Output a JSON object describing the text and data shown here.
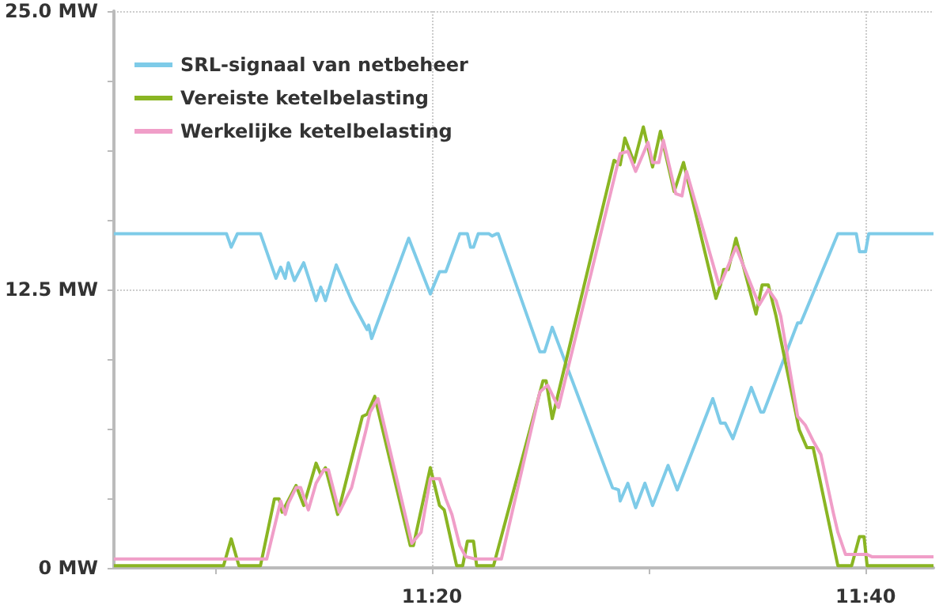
{
  "chart_data": {
    "type": "line",
    "xlim": [
      11.0889,
      11.7188
    ],
    "xticks": [
      {
        "value": 11.1667,
        "label": null
      },
      {
        "value": 11.3333,
        "label": "11:20"
      },
      {
        "value": 11.5,
        "label": null
      },
      {
        "value": 11.6667,
        "label": "11:40"
      }
    ],
    "ylim": [
      0,
      25
    ],
    "yticks": [
      {
        "value": 0,
        "label": "0 MW"
      },
      {
        "value": 3.125,
        "label": null
      },
      {
        "value": 6.25,
        "label": null
      },
      {
        "value": 9.375,
        "label": null
      },
      {
        "value": 12.5,
        "label": "12.5 MW"
      },
      {
        "value": 15.625,
        "label": null
      },
      {
        "value": 18.75,
        "label": null
      },
      {
        "value": 21.875,
        "label": null
      },
      {
        "value": 25,
        "label": "25.0 MW"
      }
    ],
    "grid": true,
    "legend": "top left",
    "marker": "none",
    "line_style": "solid",
    "series": [
      {
        "name": "SRL-signaal van netbeheer",
        "color": "#7ecbe8",
        "x": [
          11.0889,
          11.1755,
          11.1791,
          11.1838,
          11.2016,
          11.2135,
          11.2171,
          11.2206,
          11.223,
          11.2277,
          11.2348,
          11.2443,
          11.2479,
          11.2515,
          11.2598,
          11.2716,
          11.2835,
          11.2847,
          11.287,
          11.3155,
          11.3321,
          11.3392,
          11.344,
          11.3547,
          11.3606,
          11.363,
          11.3653,
          11.3689,
          11.3772,
          11.3796,
          11.3831,
          11.3843,
          11.4163,
          11.4199,
          11.4258,
          11.4721,
          11.4768,
          11.478,
          11.4839,
          11.4899,
          11.497,
          11.5029,
          11.5148,
          11.5219,
          11.5492,
          11.5551,
          11.5587,
          11.5646,
          11.5788,
          11.586,
          11.5883,
          11.6144,
          11.6168,
          11.6453,
          11.6595,
          11.6619,
          11.6666,
          11.669,
          11.7188
        ],
        "values": [
          15.0,
          15.0,
          14.4,
          15.0,
          15.0,
          13.0,
          13.5,
          13.0,
          13.7,
          12.9,
          13.7,
          12.0,
          12.6,
          12.0,
          13.6,
          12.0,
          10.7,
          10.9,
          10.3,
          14.8,
          12.3,
          13.3,
          13.3,
          15.0,
          15.0,
          14.4,
          14.4,
          15.0,
          15.0,
          14.9,
          15.0,
          15.0,
          9.7,
          9.7,
          10.8,
          3.6,
          3.5,
          3.0,
          3.8,
          2.7,
          3.8,
          2.8,
          4.6,
          3.5,
          7.6,
          6.5,
          6.5,
          5.8,
          8.1,
          7.0,
          7.0,
          11.0,
          11.0,
          15.0,
          15.0,
          14.2,
          14.2,
          15.0,
          15.0
        ]
      },
      {
        "name": "Vereiste ketelbelasting",
        "color": "#8ab523",
        "x": [
          11.0889,
          11.1732,
          11.1791,
          11.185,
          11.2016,
          11.2123,
          11.2159,
          11.2182,
          11.2289,
          11.2348,
          11.2443,
          11.2479,
          11.2515,
          11.2609,
          11.2799,
          11.2835,
          11.2894,
          11.3167,
          11.3191,
          11.3321,
          11.3392,
          11.3428,
          11.3523,
          11.357,
          11.3606,
          11.3653,
          11.3677,
          11.3807,
          11.4187,
          11.4211,
          11.4258,
          11.4733,
          11.478,
          11.4816,
          11.4887,
          11.4958,
          11.5029,
          11.5089,
          11.5195,
          11.5267,
          11.5516,
          11.5551,
          11.5575,
          11.5611,
          11.567,
          11.5824,
          11.5871,
          11.5919,
          11.5978,
          11.6156,
          11.6215,
          11.6263,
          11.6453,
          11.6559,
          11.6619,
          11.6654,
          11.6678,
          11.7188
        ],
        "values": [
          0.1,
          0.1,
          1.3,
          0.1,
          0.1,
          3.1,
          3.1,
          2.5,
          3.7,
          2.8,
          4.7,
          4.2,
          4.5,
          2.4,
          6.8,
          6.9,
          7.7,
          1.0,
          1.0,
          4.5,
          2.8,
          2.6,
          0.1,
          0.1,
          1.2,
          1.2,
          0.1,
          0.1,
          8.4,
          8.4,
          6.7,
          18.3,
          18.1,
          19.3,
          18.2,
          19.8,
          18.0,
          19.6,
          16.9,
          18.2,
          12.1,
          12.7,
          13.4,
          13.4,
          14.8,
          11.4,
          12.7,
          12.7,
          11.3,
          6.2,
          5.4,
          5.4,
          0.1,
          0.1,
          1.4,
          1.4,
          0.1,
          0.1
        ]
      },
      {
        "name": "Werkelijke ketelbelasting",
        "color": "#f09ec8",
        "x": [
          11.0889,
          11.2064,
          11.2171,
          11.2206,
          11.223,
          11.2289,
          11.2325,
          11.2384,
          11.2443,
          11.2503,
          11.2538,
          11.2621,
          11.2716,
          11.2823,
          11.2859,
          11.2918,
          11.3179,
          11.325,
          11.3321,
          11.3392,
          11.344,
          11.3487,
          11.3547,
          11.3594,
          11.3665,
          11.3867,
          11.4163,
          11.4223,
          11.4306,
          11.478,
          11.4839,
          11.4899,
          11.4994,
          11.5029,
          11.5077,
          11.5112,
          11.5207,
          11.5255,
          11.529,
          11.5539,
          11.5563,
          11.567,
          11.5848,
          11.5919,
          11.5978,
          11.6014,
          11.6144,
          11.6204,
          11.6263,
          11.6322,
          11.6417,
          11.6453,
          11.6512,
          11.6678,
          11.6714,
          11.7188
        ],
        "values": [
          0.4,
          0.4,
          3.0,
          2.4,
          2.9,
          3.6,
          3.6,
          2.6,
          3.8,
          4.4,
          4.4,
          2.5,
          3.6,
          6.1,
          7.0,
          7.6,
          1.1,
          1.6,
          4.0,
          4.0,
          3.1,
          2.4,
          1.0,
          0.5,
          0.4,
          0.4,
          7.9,
          8.2,
          7.2,
          18.6,
          18.7,
          17.8,
          19.1,
          18.2,
          18.2,
          19.2,
          16.8,
          16.7,
          17.8,
          12.7,
          12.9,
          14.4,
          11.8,
          12.5,
          12.0,
          11.3,
          6.8,
          6.4,
          5.7,
          5.1,
          2.5,
          1.6,
          0.6,
          0.6,
          0.5,
          0.5
        ]
      }
    ]
  }
}
